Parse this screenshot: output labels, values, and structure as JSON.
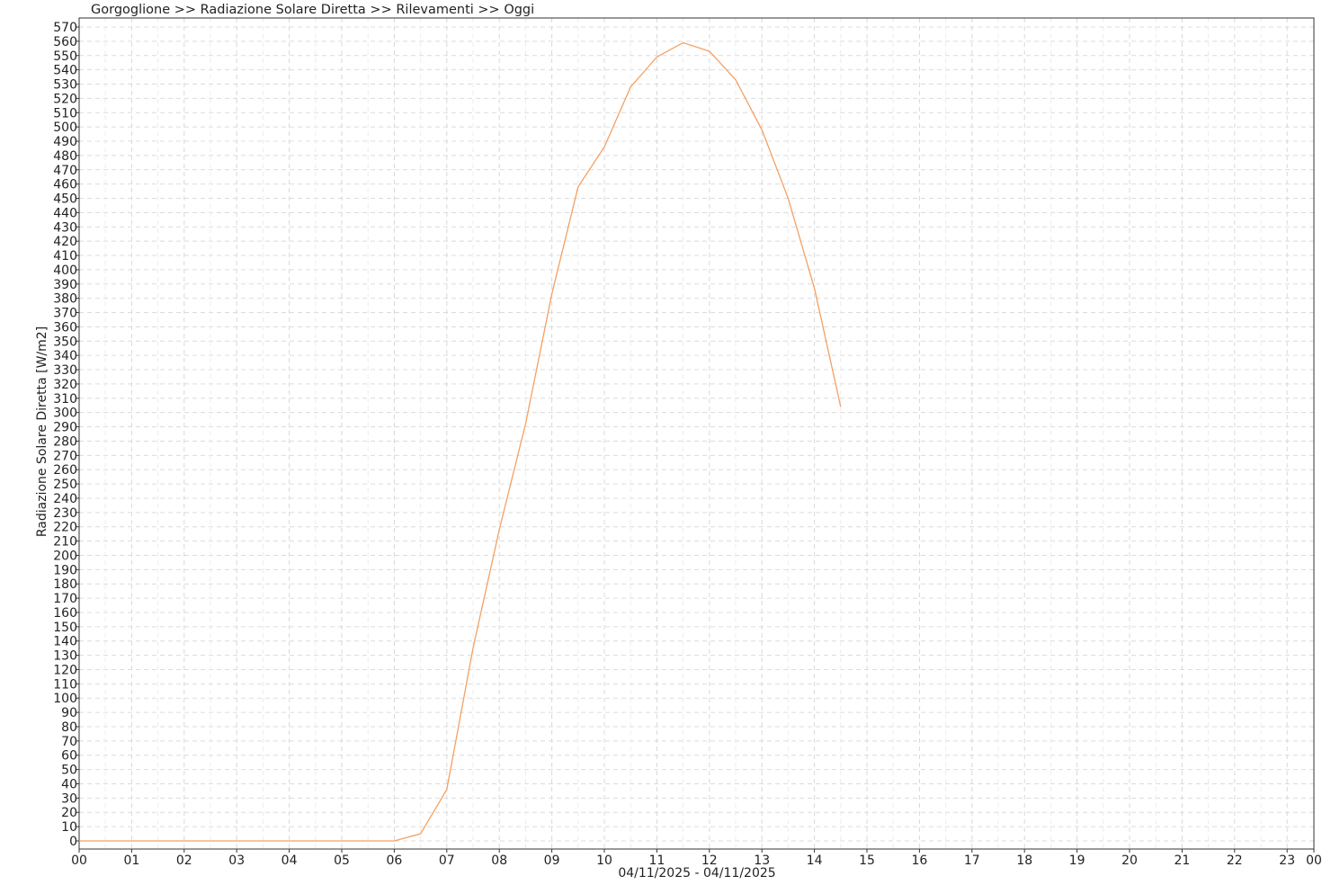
{
  "chart_data": {
    "type": "line",
    "title": "Gorgoglione >> Radiazione Solare Diretta >> Rilevamenti >> Oggi",
    "ylabel": "Radiazione Solare Diretta [W/m2]",
    "xlabel": "04/11/2025 - 04/11/2025",
    "x_tick_labels": [
      "00",
      "01",
      "02",
      "03",
      "04",
      "05",
      "06",
      "07",
      "08",
      "09",
      "10",
      "11",
      "12",
      "13",
      "14",
      "15",
      "16",
      "17",
      "18",
      "19",
      "20",
      "21",
      "22",
      "23",
      "00"
    ],
    "ylim": [
      0,
      576
    ],
    "y_tick_step": 10,
    "y_tick_max": 570,
    "grid": true,
    "line_color": "#f4a063",
    "x": [
      "00:00",
      "00:30",
      "01:00",
      "01:30",
      "02:00",
      "02:30",
      "03:00",
      "03:30",
      "04:00",
      "04:30",
      "05:00",
      "05:30",
      "06:00",
      "06:30",
      "07:00",
      "07:30",
      "08:00",
      "08:30",
      "09:00",
      "09:30",
      "10:00",
      "10:30",
      "11:00",
      "11:30",
      "12:00",
      "12:30",
      "13:00",
      "13:30",
      "14:00",
      "14:30"
    ],
    "values": [
      0,
      0,
      0,
      0,
      0,
      0,
      0,
      0,
      0,
      0,
      0,
      0,
      0,
      5,
      36,
      135,
      218,
      292,
      383,
      458,
      486,
      528,
      549,
      559,
      553,
      533,
      498,
      450,
      387,
      304
    ]
  }
}
